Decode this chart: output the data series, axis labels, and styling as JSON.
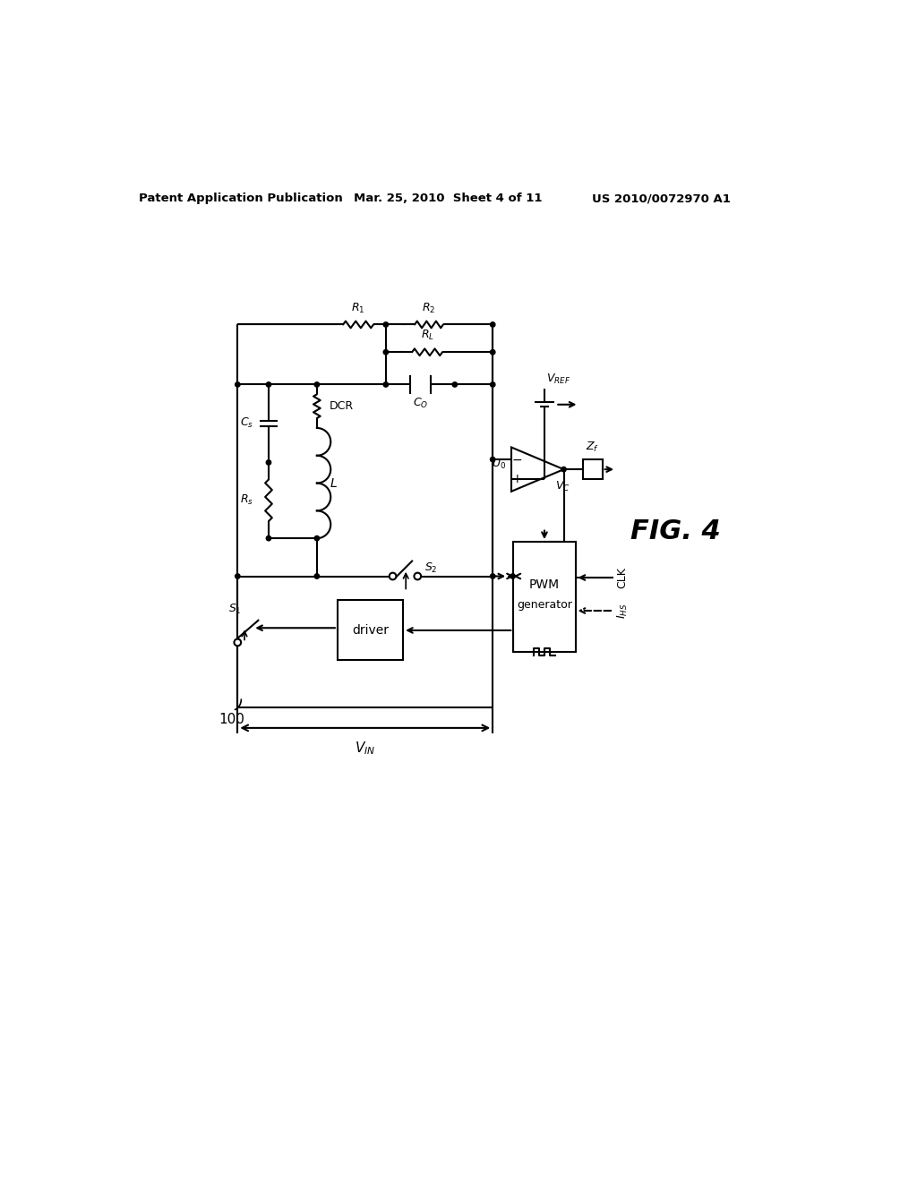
{
  "bg_color": "#ffffff",
  "header_left": "Patent Application Publication",
  "header_mid": "Mar. 25, 2010  Sheet 4 of 11",
  "header_right": "US 2010/0072970 A1",
  "fig_label": "FIG. 4",
  "circuit_label": "100"
}
